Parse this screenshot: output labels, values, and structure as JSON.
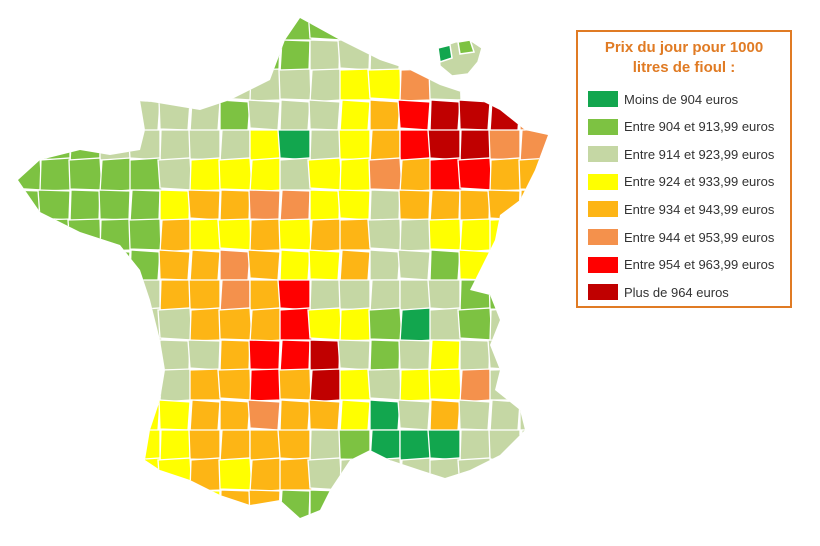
{
  "legend": {
    "title": "Prix du jour pour 1000 litres de fioul :",
    "items": [
      {
        "label": "Moins de 904 euros",
        "color": "#12a64e"
      },
      {
        "label": "Entre 904 et 913,99 euros",
        "color": "#7dc242"
      },
      {
        "label": "Entre 914 et 923,99 euros",
        "color": "#c5d7a4"
      },
      {
        "label": "Entre 924 et 933,99 euros",
        "color": "#ffff00"
      },
      {
        "label": "Entre 934 et 943,99 euros",
        "color": "#fdb515"
      },
      {
        "label": "Entre 944 et 953,99 euros",
        "color": "#f4914c"
      },
      {
        "label": "Entre 954 et 963,99 euros",
        "color": "#ff0000"
      },
      {
        "label": "Plus de 964 euros",
        "color": "#c00000"
      }
    ]
  }
}
